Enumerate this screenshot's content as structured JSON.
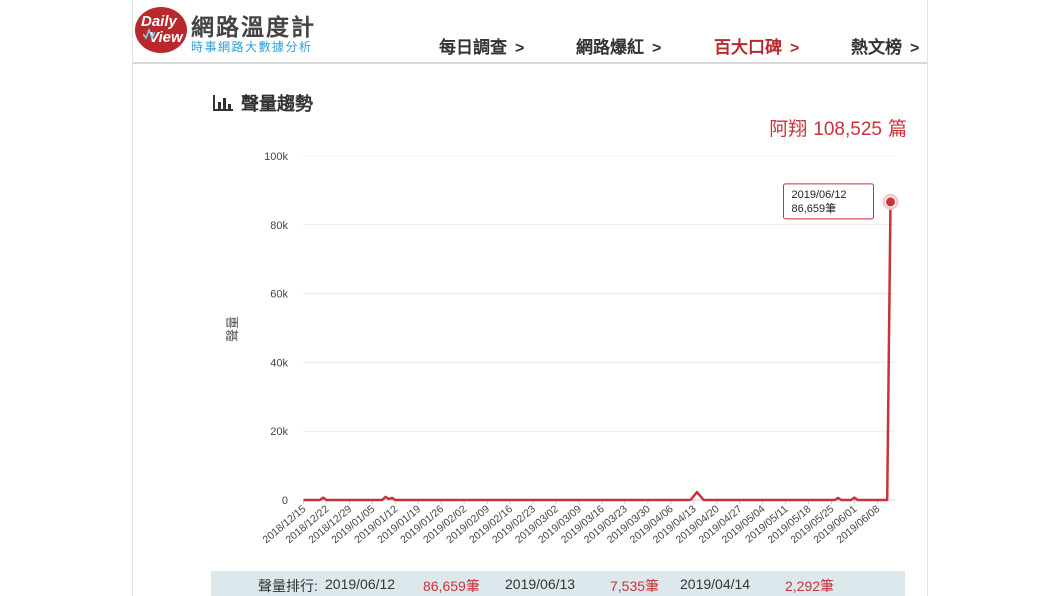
{
  "brand": {
    "logo_text_1": "Daily",
    "logo_text_2": "View",
    "title": "網路溫度計",
    "subtitle": "時事網路大數據分析"
  },
  "nav": [
    {
      "label": "每日調查",
      "active": false
    },
    {
      "label": "網路爆紅",
      "active": false
    },
    {
      "label": "百大口碑",
      "active": true
    },
    {
      "label": "熱文榜",
      "active": false
    }
  ],
  "section_title": "聲量趨勢",
  "summary": {
    "subject": "阿翔",
    "count": "108,525",
    "unit": "篇"
  },
  "tooltip": {
    "date": "2019/06/12",
    "value": "86,659筆"
  },
  "chart_data": {
    "type": "line",
    "ylabel": "聲量",
    "ylim": [
      0,
      100000
    ],
    "yticks": [
      "0",
      "20k",
      "40k",
      "60k",
      "80k",
      "100k"
    ],
    "ytick_values": [
      0,
      20000,
      40000,
      60000,
      80000,
      100000
    ],
    "x_start": "2018/12/15",
    "x_end": "2019/06/12",
    "xticks": [
      "2018/12/15",
      "2018/12/22",
      "2018/12/29",
      "2019/01/05",
      "2019/01/12",
      "2019/01/19",
      "2019/01/26",
      "2019/02/02",
      "2019/02/09",
      "2019/02/16",
      "2019/02/23",
      "2019/03/02",
      "2019/03/09",
      "2019/03/16",
      "2019/03/23",
      "2019/03/30",
      "2019/04/06",
      "2019/04/13",
      "2019/04/20",
      "2019/04/27",
      "2019/05/04",
      "2019/05/11",
      "2019/05/18",
      "2019/05/25",
      "2019/06/01",
      "2019/06/08"
    ],
    "points": [
      {
        "x": "2018/12/15",
        "y": 0
      },
      {
        "x": "2018/12/20",
        "y": 0
      },
      {
        "x": "2018/12/21",
        "y": 700
      },
      {
        "x": "2018/12/22",
        "y": 0
      },
      {
        "x": "2019/01/08",
        "y": 0
      },
      {
        "x": "2019/01/09",
        "y": 900
      },
      {
        "x": "2019/01/10",
        "y": 300
      },
      {
        "x": "2019/01/11",
        "y": 600
      },
      {
        "x": "2019/01/12",
        "y": 0
      },
      {
        "x": "2019/04/12",
        "y": 0
      },
      {
        "x": "2019/04/14",
        "y": 2292
      },
      {
        "x": "2019/04/16",
        "y": 0
      },
      {
        "x": "2019/05/26",
        "y": 0
      },
      {
        "x": "2019/05/27",
        "y": 600
      },
      {
        "x": "2019/05/28",
        "y": 0
      },
      {
        "x": "2019/05/31",
        "y": 0
      },
      {
        "x": "2019/06/01",
        "y": 700
      },
      {
        "x": "2019/06/02",
        "y": 0
      },
      {
        "x": "2019/06/11",
        "y": 0
      },
      {
        "x": "2019/06/12",
        "y": 86659
      }
    ],
    "highlight": {
      "x": "2019/06/12",
      "y": 86659
    },
    "line_color": "#c8333a",
    "grid": true,
    "legend": "none"
  },
  "ranking": {
    "label": "聲量排行:",
    "items": [
      {
        "date": "2019/06/12",
        "value": "86,659筆"
      },
      {
        "date": "2019/06/13",
        "value": "7,535筆"
      },
      {
        "date": "2019/04/14",
        "value": "2,292筆"
      }
    ]
  }
}
